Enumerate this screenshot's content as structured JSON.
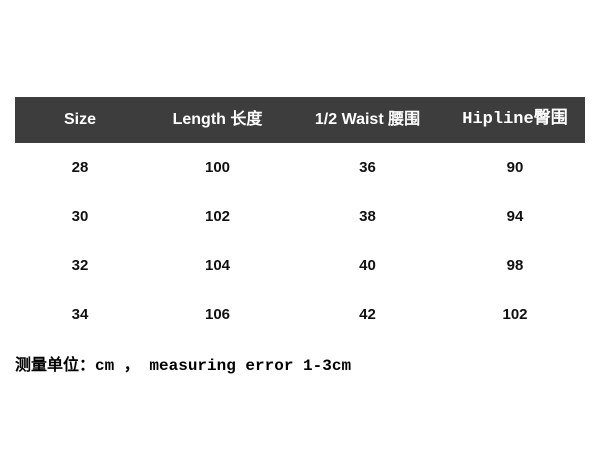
{
  "chart_data": {
    "type": "table",
    "title": "",
    "columns": [
      "Size",
      "Length 长度",
      "1/2 Waist 腰围",
      "Hipline臀围"
    ],
    "rows": [
      [
        "28",
        "100",
        "36",
        "90"
      ],
      [
        "30",
        "102",
        "38",
        "94"
      ],
      [
        "32",
        "104",
        "40",
        "98"
      ],
      [
        "34",
        "106",
        "42",
        "102"
      ]
    ],
    "note": "测量单位：cm ， measuring error 1-3cm",
    "units": "cm",
    "measuring_error": "1-3cm"
  },
  "colors": {
    "header_bg": "#3d3d3d",
    "header_text": "#ffffff",
    "body_text": "#111111",
    "page_bg": "#ffffff"
  }
}
